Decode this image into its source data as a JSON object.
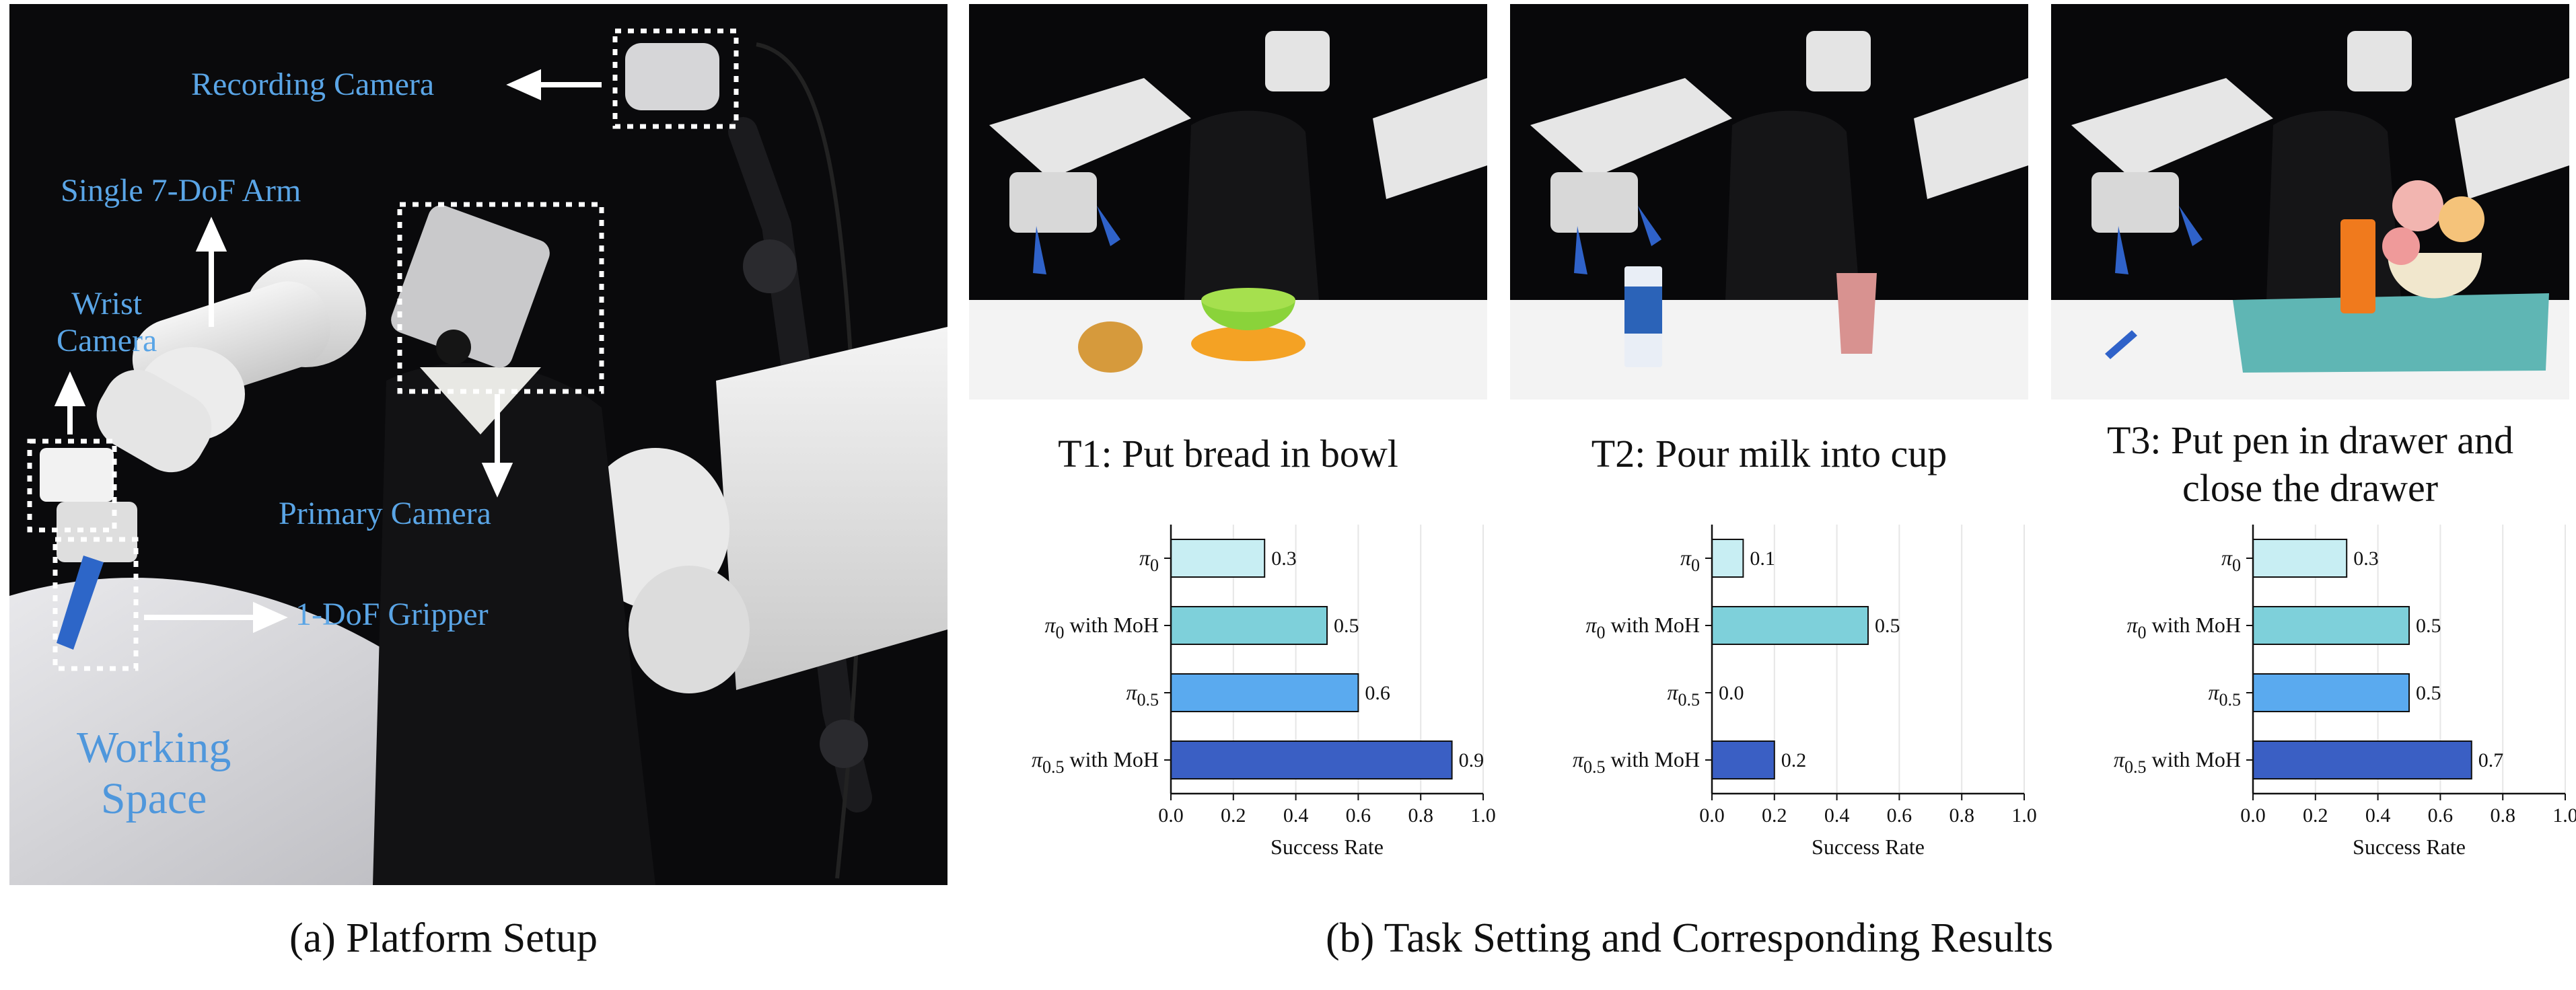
{
  "panel_a": {
    "labels": {
      "recording_camera": "Recording Camera",
      "single_arm": "Single 7-DoF Arm",
      "wrist_camera": "Wrist\nCamera",
      "primary_camera": "Primary Camera",
      "gripper": "1-DoF Gripper",
      "working_space": "Working\nSpace"
    },
    "caption": "(a) Platform Setup"
  },
  "panel_b": {
    "caption": "(b) Task Setting and Corresponding Results"
  },
  "tasks": [
    {
      "title": "T1: Put bread in bowl"
    },
    {
      "title": "T2: Pour milk into cup"
    },
    {
      "title": "T3: Put pen in drawer and\nclose the drawer"
    }
  ],
  "chart_data": [
    {
      "type": "bar",
      "orientation": "horizontal",
      "categories": [
        "π0",
        "π0 with MoH",
        "π0.5",
        "π0.5 with MoH"
      ],
      "values": [
        0.3,
        0.5,
        0.6,
        0.9
      ],
      "value_labels": [
        "0.3",
        "0.5",
        "0.6",
        "0.9"
      ],
      "xlabel": "Success Rate",
      "xlim": [
        0.0,
        1.0
      ],
      "xticks": [
        "0.0",
        "0.2",
        "0.4",
        "0.6",
        "0.8",
        "1.0"
      ],
      "grid": "vertical",
      "colors": [
        "#c8eef3",
        "#7ed0da",
        "#5aaaef",
        "#3a5fc4"
      ]
    },
    {
      "type": "bar",
      "orientation": "horizontal",
      "categories": [
        "π0",
        "π0 with MoH",
        "π0.5",
        "π0.5 with MoH"
      ],
      "values": [
        0.1,
        0.5,
        0.0,
        0.2
      ],
      "value_labels": [
        "0.1",
        "0.5",
        "0.0",
        "0.2"
      ],
      "xlabel": "Success Rate",
      "xlim": [
        0.0,
        1.0
      ],
      "xticks": [
        "0.0",
        "0.2",
        "0.4",
        "0.6",
        "0.8",
        "1.0"
      ],
      "grid": "vertical",
      "colors": [
        "#c8eef3",
        "#7ed0da",
        "#5aaaef",
        "#3a5fc4"
      ]
    },
    {
      "type": "bar",
      "orientation": "horizontal",
      "categories": [
        "π0",
        "π0 with MoH",
        "π0.5",
        "π0.5 with MoH"
      ],
      "values": [
        0.3,
        0.5,
        0.5,
        0.7
      ],
      "value_labels": [
        "0.3",
        "0.5",
        "0.5",
        "0.7"
      ],
      "xlabel": "Success Rate",
      "xlim": [
        0.0,
        1.0
      ],
      "xticks": [
        "0.0",
        "0.2",
        "0.4",
        "0.6",
        "0.8",
        "1.0"
      ],
      "grid": "vertical",
      "colors": [
        "#c8eef3",
        "#7ed0da",
        "#5aaaef",
        "#3a5fc4"
      ]
    }
  ]
}
